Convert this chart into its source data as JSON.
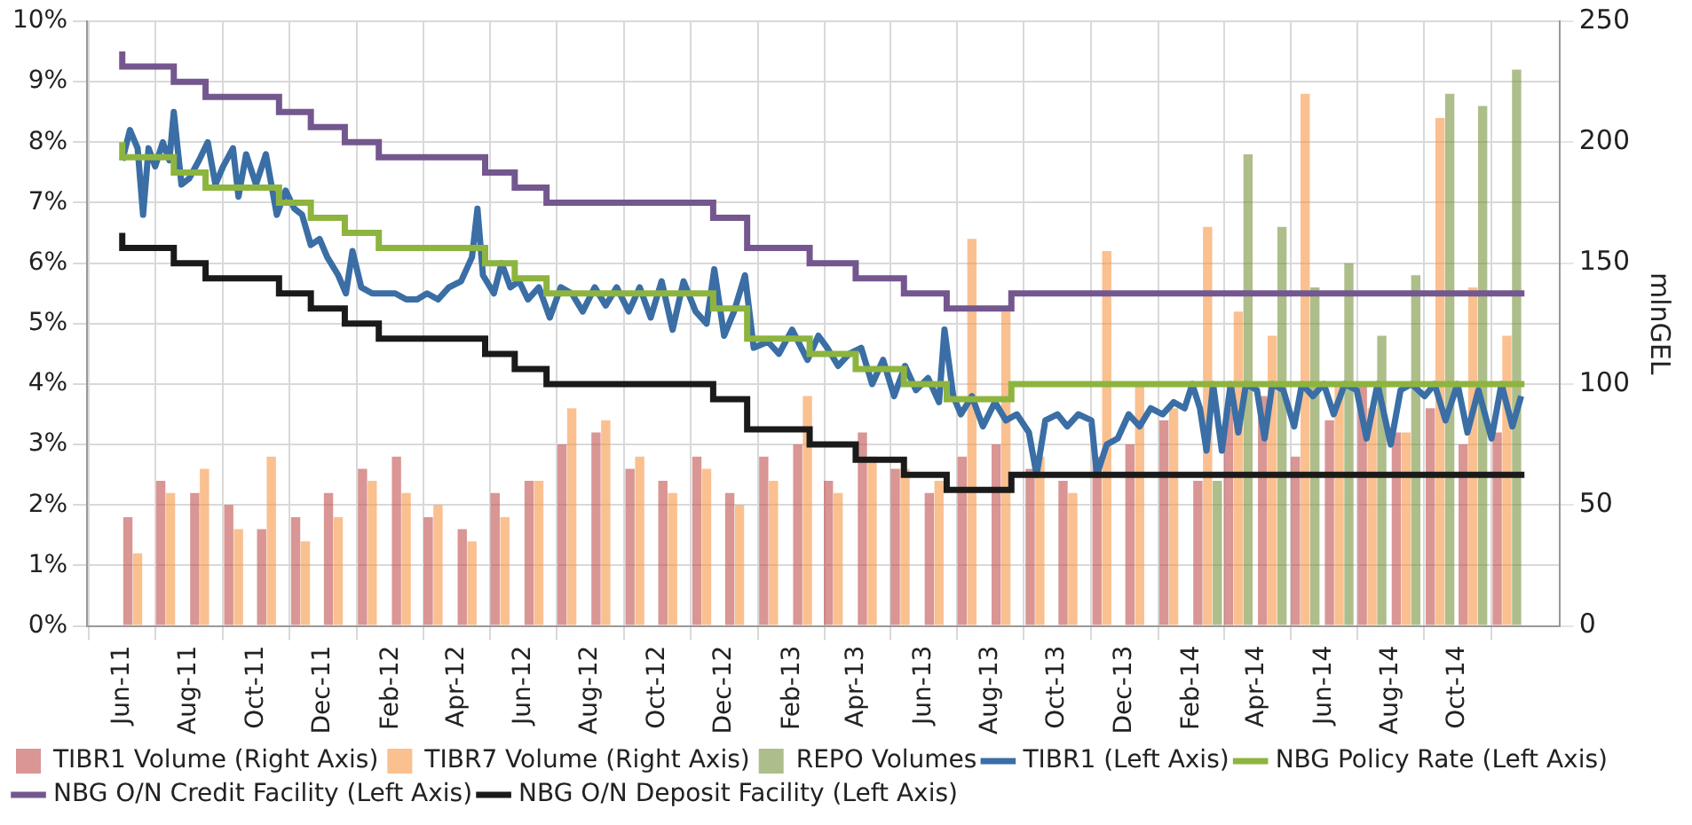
{
  "chart_data": {
    "type": "bar",
    "ylabel": null,
    "y2label": "mlnGEL",
    "xlim": [
      "2011-06-01",
      "2014-12-01"
    ],
    "xticks": [
      {
        "value": "2011-06-01",
        "label": "Jun-11"
      },
      {
        "value": "2011-08-01",
        "label": "Aug-11"
      },
      {
        "value": "2011-10-01",
        "label": "Oct-11"
      },
      {
        "value": "2011-12-01",
        "label": "Dec-11"
      },
      {
        "value": "2012-02-01",
        "label": "Feb-12"
      },
      {
        "value": "2012-04-01",
        "label": "Apr-12"
      },
      {
        "value": "2012-06-01",
        "label": "Jun-12"
      },
      {
        "value": "2012-08-01",
        "label": "Aug-12"
      },
      {
        "value": "2012-10-01",
        "label": "Oct-12"
      },
      {
        "value": "2012-12-01",
        "label": "Dec-12"
      },
      {
        "value": "2013-02-01",
        "label": "Feb-13"
      },
      {
        "value": "2013-04-01",
        "label": "Apr-13"
      },
      {
        "value": "2013-06-01",
        "label": "Jun-13"
      },
      {
        "value": "2013-08-01",
        "label": "Aug-13"
      },
      {
        "value": "2013-10-01",
        "label": "Oct-13"
      },
      {
        "value": "2013-12-01",
        "label": "Dec-13"
      },
      {
        "value": "2014-02-01",
        "label": "Feb-14"
      },
      {
        "value": "2014-04-01",
        "label": "Apr-14"
      },
      {
        "value": "2014-06-01",
        "label": "Jun-14"
      },
      {
        "value": "2014-08-01",
        "label": "Aug-14"
      },
      {
        "value": "2014-10-01",
        "label": "Oct-14"
      }
    ],
    "ylim": [
      0,
      10
    ],
    "yticks": [
      {
        "value": 0,
        "label": "0%"
      },
      {
        "value": 1,
        "label": "1%"
      },
      {
        "value": 2,
        "label": "2%"
      },
      {
        "value": 3,
        "label": "3%"
      },
      {
        "value": 4,
        "label": "4%"
      },
      {
        "value": 5,
        "label": "5%"
      },
      {
        "value": 6,
        "label": "6%"
      },
      {
        "value": 7,
        "label": "7%"
      },
      {
        "value": 8,
        "label": "8%"
      },
      {
        "value": 9,
        "label": "9%"
      },
      {
        "value": 10,
        "label": "10%"
      }
    ],
    "y2lim": [
      0,
      250
    ],
    "y2ticks": [
      0,
      50,
      100,
      150,
      200,
      250
    ],
    "grid": true,
    "legend": "bottom",
    "x": [
      "2011-06-15",
      "2011-07-15",
      "2011-08-15",
      "2011-09-15",
      "2011-10-15",
      "2011-11-15",
      "2011-12-15",
      "2012-01-15",
      "2012-02-15",
      "2012-03-15",
      "2012-04-15",
      "2012-05-15",
      "2012-06-15",
      "2012-07-15",
      "2012-08-15",
      "2012-09-15",
      "2012-10-15",
      "2012-11-15",
      "2012-12-15",
      "2013-01-15",
      "2013-02-15",
      "2013-03-15",
      "2013-04-15",
      "2013-05-15",
      "2013-06-15",
      "2013-07-15",
      "2013-08-15",
      "2013-09-15",
      "2013-10-15",
      "2013-11-15",
      "2013-12-15",
      "2014-01-15",
      "2014-02-15",
      "2014-03-15",
      "2014-04-15",
      "2014-05-15",
      "2014-06-15",
      "2014-07-15",
      "2014-08-15",
      "2014-09-15",
      "2014-10-15",
      "2014-11-15"
    ],
    "series": [
      {
        "name": "TIBR1 Volume (Right Axis)",
        "axis": "y2",
        "color": "#c0504d",
        "values": [
          45,
          60,
          55,
          50,
          40,
          45,
          55,
          65,
          70,
          45,
          40,
          55,
          60,
          75,
          80,
          65,
          60,
          70,
          55,
          70,
          75,
          60,
          80,
          65,
          55,
          70,
          75,
          65,
          60,
          70,
          75,
          85,
          60,
          90,
          95,
          70,
          85,
          100,
          80,
          90,
          75,
          80
        ]
      },
      {
        "name": "TIBR7 Volume (Right Axis)",
        "axis": "y2",
        "color": "#f79646",
        "values": [
          30,
          55,
          65,
          40,
          70,
          35,
          45,
          60,
          55,
          50,
          35,
          45,
          60,
          90,
          85,
          70,
          55,
          65,
          50,
          60,
          95,
          55,
          70,
          65,
          60,
          160,
          130,
          70,
          55,
          155,
          100,
          90,
          165,
          130,
          120,
          220,
          100,
          90,
          80,
          210,
          140,
          120
        ]
      },
      {
        "name": "REPO Volumes",
        "axis": "y2",
        "color": "#77933c",
        "values": [
          null,
          null,
          null,
          null,
          null,
          null,
          null,
          null,
          null,
          null,
          null,
          null,
          null,
          null,
          null,
          null,
          null,
          null,
          null,
          null,
          null,
          null,
          null,
          null,
          null,
          null,
          null,
          null,
          null,
          null,
          null,
          null,
          60,
          195,
          165,
          140,
          150,
          120,
          145,
          220,
          215,
          230
        ]
      },
      {
        "name": "TIBR1 (Left Axis)",
        "type": "line",
        "color": "#3a6ea5",
        "x": [
          "2011-06-01",
          "2011-06-08",
          "2011-06-15",
          "2011-06-20",
          "2011-06-25",
          "2011-07-01",
          "2011-07-08",
          "2011-07-14",
          "2011-07-18",
          "2011-07-25",
          "2011-08-01",
          "2011-08-10",
          "2011-08-18",
          "2011-08-25",
          "2011-09-01",
          "2011-09-10",
          "2011-09-15",
          "2011-09-22",
          "2011-10-01",
          "2011-10-10",
          "2011-10-20",
          "2011-10-28",
          "2011-11-05",
          "2011-11-12",
          "2011-11-20",
          "2011-11-28",
          "2011-12-05",
          "2011-12-15",
          "2011-12-22",
          "2011-12-28",
          "2012-01-05",
          "2012-01-15",
          "2012-01-25",
          "2012-02-05",
          "2012-02-15",
          "2012-02-25",
          "2012-03-05",
          "2012-03-15",
          "2012-03-25",
          "2012-04-05",
          "2012-04-15",
          "2012-04-20",
          "2012-04-25",
          "2012-05-05",
          "2012-05-12",
          "2012-05-20",
          "2012-05-28",
          "2012-06-05",
          "2012-06-15",
          "2012-06-25",
          "2012-07-05",
          "2012-07-15",
          "2012-07-25",
          "2012-08-05",
          "2012-08-15",
          "2012-08-25",
          "2012-09-05",
          "2012-09-15",
          "2012-09-25",
          "2012-10-05",
          "2012-10-15",
          "2012-10-25",
          "2012-11-05",
          "2012-11-15",
          "2012-11-22",
          "2012-12-01",
          "2012-12-10",
          "2012-12-20",
          "2012-12-28",
          "2013-01-10",
          "2013-01-20",
          "2013-02-01",
          "2013-02-15",
          "2013-02-25",
          "2013-03-05",
          "2013-03-15",
          "2013-03-25",
          "2013-04-05",
          "2013-04-15",
          "2013-04-25",
          "2013-05-05",
          "2013-05-15",
          "2013-05-25",
          "2013-06-05",
          "2013-06-15",
          "2013-06-20",
          "2013-06-28",
          "2013-07-05",
          "2013-07-15",
          "2013-07-25",
          "2013-08-05",
          "2013-08-15",
          "2013-08-25",
          "2013-09-05",
          "2013-09-12",
          "2013-09-20",
          "2013-10-01",
          "2013-10-10",
          "2013-10-20",
          "2013-11-01",
          "2013-11-06",
          "2013-11-15",
          "2013-11-25",
          "2013-12-05",
          "2013-12-15",
          "2013-12-25",
          "2014-01-05",
          "2014-01-15",
          "2014-01-25",
          "2014-02-01",
          "2014-02-08",
          "2014-02-14",
          "2014-02-20",
          "2014-02-28",
          "2014-03-08",
          "2014-03-15",
          "2014-03-22",
          "2014-04-01",
          "2014-04-08",
          "2014-04-15",
          "2014-04-25",
          "2014-05-05",
          "2014-05-12",
          "2014-05-22",
          "2014-06-01",
          "2014-06-10",
          "2014-06-20",
          "2014-07-01",
          "2014-07-10",
          "2014-07-20",
          "2014-08-01",
          "2014-08-10",
          "2014-08-20",
          "2014-09-01",
          "2014-09-10",
          "2014-09-20",
          "2014-10-01",
          "2014-10-10",
          "2014-10-20",
          "2014-11-01",
          "2014-11-10",
          "2014-11-20",
          "2014-11-28"
        ],
        "values": [
          7.7,
          8.2,
          7.9,
          6.8,
          7.9,
          7.6,
          8.0,
          7.7,
          8.5,
          7.3,
          7.4,
          7.7,
          8.0,
          7.3,
          7.6,
          7.9,
          7.1,
          7.8,
          7.3,
          7.8,
          6.8,
          7.2,
          6.9,
          6.8,
          6.3,
          6.4,
          6.1,
          5.8,
          5.5,
          6.2,
          5.6,
          5.5,
          5.5,
          5.5,
          5.4,
          5.4,
          5.5,
          5.4,
          5.6,
          5.7,
          6.1,
          6.9,
          5.8,
          5.5,
          6.0,
          5.6,
          5.7,
          5.4,
          5.6,
          5.1,
          5.6,
          5.5,
          5.2,
          5.6,
          5.3,
          5.6,
          5.2,
          5.6,
          5.1,
          5.7,
          4.9,
          5.7,
          5.2,
          5.0,
          5.9,
          4.8,
          5.2,
          5.8,
          4.6,
          4.7,
          4.5,
          4.9,
          4.4,
          4.8,
          4.6,
          4.3,
          4.5,
          4.6,
          4.0,
          4.4,
          3.8,
          4.3,
          3.9,
          4.1,
          3.7,
          4.9,
          3.8,
          3.5,
          3.8,
          3.3,
          3.7,
          3.4,
          3.5,
          3.2,
          2.5,
          3.4,
          3.5,
          3.3,
          3.5,
          3.4,
          2.5,
          3.0,
          3.1,
          3.5,
          3.3,
          3.6,
          3.5,
          3.7,
          3.6,
          4.0,
          3.6,
          2.9,
          4.0,
          2.9,
          4.0,
          3.2,
          4.0,
          3.9,
          3.1,
          4.0,
          3.9,
          3.3,
          4.0,
          3.8,
          4.0,
          3.5,
          4.0,
          3.9,
          3.1,
          4.0,
          3.0,
          3.9,
          4.0,
          3.8,
          4.0,
          3.4,
          4.0,
          3.2,
          3.9,
          3.1,
          4.0,
          3.3,
          3.8
        ]
      },
      {
        "name": "NBG Policy Rate (Left Axis)",
        "type": "step",
        "color": "#8db43e",
        "x": [
          "2011-06-01",
          "2011-07-18",
          "2011-08-16",
          "2011-10-22",
          "2011-11-20",
          "2011-12-21",
          "2012-01-21",
          "2012-04-27",
          "2012-05-24",
          "2012-06-22",
          "2012-11-21",
          "2012-12-22",
          "2013-02-17",
          "2013-03-31",
          "2013-05-14",
          "2013-06-22",
          "2013-08-20",
          "2014-02-18",
          "2014-12-01"
        ],
        "values": [
          8.0,
          7.75,
          7.5,
          7.25,
          7.0,
          6.75,
          6.5,
          6.25,
          6.0,
          5.75,
          5.5,
          5.25,
          4.75,
          4.5,
          4.25,
          4.0,
          3.75,
          4.0,
          4.0
        ]
      },
      {
        "name": "NBG O/N Credit Facility (Left Axis)",
        "type": "step",
        "color": "#73578e",
        "x": [
          "2011-06-01",
          "2011-07-18",
          "2011-08-16",
          "2011-10-22",
          "2011-11-20",
          "2011-12-21",
          "2012-01-21",
          "2012-04-27",
          "2012-05-24",
          "2012-06-22",
          "2012-11-21",
          "2012-12-22",
          "2013-02-17",
          "2013-03-31",
          "2013-05-14",
          "2013-06-22",
          "2013-08-20",
          "2014-02-18",
          "2014-12-01"
        ],
        "values": [
          9.5,
          9.25,
          9.0,
          8.75,
          8.5,
          8.25,
          8.0,
          7.75,
          7.5,
          7.25,
          7.0,
          6.75,
          6.25,
          6.0,
          5.75,
          5.5,
          5.25,
          5.5,
          5.5
        ]
      },
      {
        "name": "NBG O/N Deposit Facility (Left Axis)",
        "type": "step",
        "color": "#1a1a1a",
        "x": [
          "2011-06-01",
          "2011-07-18",
          "2011-08-16",
          "2011-10-22",
          "2011-11-20",
          "2011-12-21",
          "2012-01-21",
          "2012-04-27",
          "2012-05-24",
          "2012-06-22",
          "2012-11-21",
          "2012-12-22",
          "2013-02-17",
          "2013-03-31",
          "2013-05-14",
          "2013-06-22",
          "2013-08-20",
          "2014-02-18",
          "2014-12-01"
        ],
        "values": [
          6.5,
          6.25,
          6.0,
          5.75,
          5.5,
          5.25,
          5.0,
          4.75,
          4.5,
          4.25,
          4.0,
          3.75,
          3.25,
          3.0,
          2.75,
          2.5,
          2.25,
          2.5,
          2.5
        ]
      }
    ]
  }
}
